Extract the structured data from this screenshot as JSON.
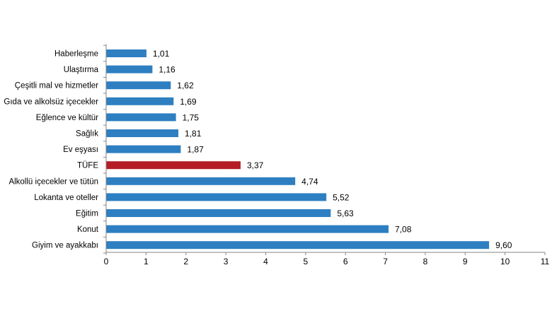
{
  "chart_data": {
    "type": "bar",
    "orientation": "horizontal",
    "categories": [
      "Haberleşme",
      "Ulaştırma",
      "Çeşitli mal ve hizmetler",
      "Gıda ve alkolsüz içecekler",
      "Eğlence ve kültür",
      "Sağlık",
      "Ev eşyası",
      "TÜFE",
      "Alkollü içecekler ve tütün",
      "Lokanta ve oteller",
      "Eğitim",
      "Konut",
      "Giyim ve ayakkabı"
    ],
    "values": [
      1.01,
      1.16,
      1.62,
      1.69,
      1.75,
      1.81,
      1.87,
      3.37,
      4.74,
      5.52,
      5.63,
      7.08,
      9.6
    ],
    "value_labels": [
      "1,01",
      "1,16",
      "1,62",
      "1,69",
      "1,75",
      "1,81",
      "1,87",
      "3,37",
      "4,74",
      "5,52",
      "5,63",
      "7,08",
      "9,60"
    ],
    "highlight_category": "TÜFE",
    "xlim": [
      0,
      11
    ],
    "x_ticks": [
      "0",
      "1",
      "2",
      "3",
      "4",
      "5",
      "6",
      "7",
      "8",
      "9",
      "10",
      "11"
    ],
    "grid": false,
    "title": "",
    "xlabel": "",
    "ylabel": "",
    "colors": {
      "bar": "#2e7fc1",
      "highlight": "#b41e24",
      "axis": "#868686",
      "text": "#000000"
    }
  }
}
